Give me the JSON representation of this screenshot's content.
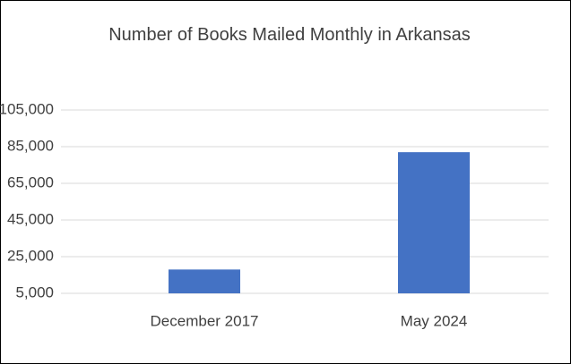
{
  "chart_data": {
    "type": "bar",
    "title": "Number of Books Mailed Monthly in Arkansas",
    "categories": [
      "December 2017",
      "May 2024"
    ],
    "values": [
      18000,
      82000
    ],
    "color": "#4472c4",
    "ylim": [
      5000,
      105000
    ],
    "yticks": [
      {
        "value": 5000,
        "label": "5,000"
      },
      {
        "value": 25000,
        "label": "25,000"
      },
      {
        "value": 45000,
        "label": "45,000"
      },
      {
        "value": 65000,
        "label": "65,000"
      },
      {
        "value": 85000,
        "label": "85,000"
      },
      {
        "value": 105000,
        "label": "105,000"
      }
    ],
    "grid": true
  }
}
